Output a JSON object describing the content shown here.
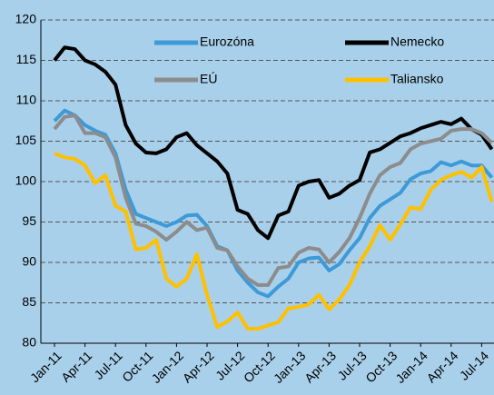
{
  "chart_data": {
    "type": "line",
    "categories": [
      "Jan-11",
      null,
      null,
      "Apr-11",
      null,
      null,
      "Jul-11",
      null,
      null,
      "Oct-11",
      null,
      null,
      "Jan-12",
      null,
      null,
      "Apr-12",
      null,
      null,
      "Jul-12",
      null,
      null,
      "Oct-12",
      null,
      null,
      "Jan-13",
      null,
      null,
      "Apr-13",
      null,
      null,
      "Jul-13",
      null,
      null,
      "Oct-13",
      null,
      null,
      "Jan-14",
      null,
      null,
      "Apr-14",
      null,
      null,
      "Jul-14",
      null
    ],
    "series": [
      {
        "name": "Eurozóna",
        "color": "#3d9ad8",
        "values": [
          107.5,
          108.8,
          108.2,
          107,
          106.3,
          105.8,
          103.5,
          99,
          96,
          95.5,
          95,
          94.5,
          95,
          95.8,
          95.9,
          94.5,
          92,
          91.5,
          89,
          87.5,
          86.3,
          85.8,
          87,
          88,
          90,
          90.5,
          90.6,
          89,
          89.8,
          91.5,
          93,
          95.5,
          97,
          97.8,
          98.6,
          100.3,
          101,
          101.3,
          102.4,
          102,
          102.5,
          102,
          102,
          100.5
        ]
      },
      {
        "name": "Nemecko",
        "color": "#000000",
        "values": [
          115,
          116.6,
          116.4,
          115,
          114.5,
          113.6,
          112,
          107,
          104.7,
          103.6,
          103.5,
          104,
          105.5,
          106,
          104.5,
          103.5,
          102.5,
          101,
          96.5,
          96,
          94,
          93,
          95.8,
          96.3,
          99.5,
          100,
          100.2,
          98,
          98.5,
          99.5,
          100.2,
          103.6,
          104,
          104.8,
          105.6,
          106,
          106.6,
          107,
          107.4,
          107.1,
          107.8,
          106.5,
          105.8,
          104
        ]
      },
      {
        "name": "EÚ",
        "color": "#8c8c8c",
        "values": [
          106.5,
          108,
          108.2,
          106,
          106,
          105.5,
          103,
          98,
          94.8,
          94.5,
          93.8,
          92.8,
          93.8,
          95,
          94,
          94.3,
          91.8,
          91.5,
          89.5,
          88,
          87.2,
          87.2,
          89.3,
          89.5,
          91.2,
          91.8,
          91.6,
          90,
          91.3,
          93,
          95.5,
          98.5,
          100.8,
          101.8,
          102.3,
          104,
          104.7,
          105,
          105.3,
          106.3,
          106.5,
          106.5,
          106,
          104.8
        ]
      },
      {
        "name": "Taliansko",
        "color": "#ffc000",
        "values": [
          103.5,
          103,
          102.8,
          102,
          99.8,
          100.8,
          97,
          96.3,
          91.6,
          91.8,
          92.8,
          88,
          87,
          88,
          91,
          86,
          82,
          82.7,
          83.8,
          81.8,
          81.8,
          82.2,
          82.6,
          84.3,
          84.5,
          84.8,
          86,
          84.2,
          85.4,
          87.2,
          90,
          92,
          94.6,
          92.8,
          94.7,
          96.8,
          96.6,
          99,
          100.2,
          100.8,
          101.2,
          100.5,
          101.8,
          97.5
        ]
      }
    ],
    "ylim": [
      80,
      120
    ],
    "yticks": [
      80,
      85,
      90,
      95,
      100,
      105,
      110,
      115,
      120
    ],
    "grid": true
  }
}
